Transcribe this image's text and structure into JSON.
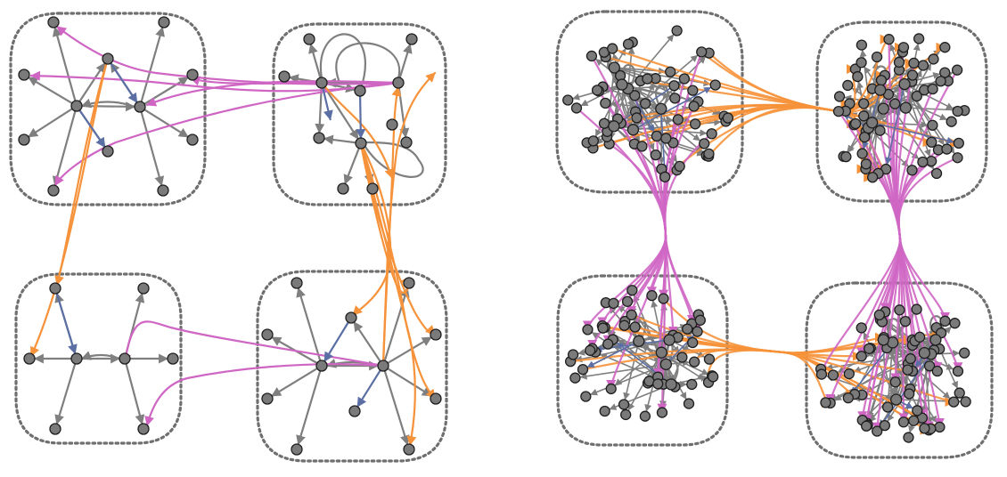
{
  "colors": {
    "intra_edge": "#7f7f7f",
    "inter_edge_magenta": "#cf66c4",
    "inter_edge_orange": "#f6923a",
    "reciprocal_edge_blue": "#5b6fa5",
    "node_fill": "#7a7a7a",
    "node_stroke": "#1e1e1e",
    "cluster_outline": "#6f6f6f"
  },
  "panels": [
    {
      "name": "small-graph",
      "clusters": 4
    },
    {
      "name": "large-graph",
      "clusters": 4
    }
  ]
}
